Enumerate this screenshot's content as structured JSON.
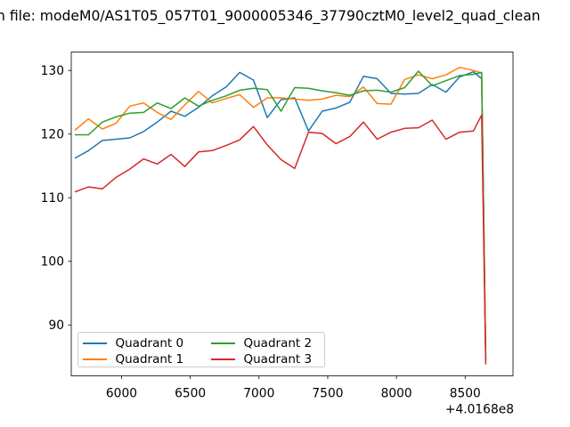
{
  "title": "n file: modeM0/AS1T05_057T01_9000005346_37790cztM0_level2_quad_clean",
  "axes": {
    "offset_text": "+4.0168e8",
    "xticks": [
      {
        "value": 6000,
        "label": "6000"
      },
      {
        "value": 6500,
        "label": "6500"
      },
      {
        "value": 7000,
        "label": "7000"
      },
      {
        "value": 7500,
        "label": "7500"
      },
      {
        "value": 8000,
        "label": "8000"
      },
      {
        "value": 8500,
        "label": "8500"
      }
    ],
    "yticks": [
      {
        "value": 90,
        "label": "90"
      },
      {
        "value": 100,
        "label": "100"
      },
      {
        "value": 110,
        "label": "110"
      },
      {
        "value": 120,
        "label": "120"
      },
      {
        "value": 130,
        "label": "130"
      }
    ]
  },
  "legend": {
    "items": [
      {
        "label": "Quadrant 0",
        "color": "#1f77b4"
      },
      {
        "label": "Quadrant 1",
        "color": "#ff7f0e"
      },
      {
        "label": "Quadrant 2",
        "color": "#2ca02c"
      },
      {
        "label": "Quadrant 3",
        "color": "#d62728"
      }
    ],
    "position": "lower left",
    "columns": 2
  },
  "chart_data": {
    "type": "line",
    "title": "n file: modeM0/AS1T05_057T01_9000005346_37790cztM0_level2_quad_clean",
    "xlabel": "",
    "ylabel": "",
    "x_offset_text": "+4.0168e8",
    "xlim": [
      5634,
      8848
    ],
    "ylim": [
      82.0,
      132.9
    ],
    "grid": false,
    "x": [
      5660,
      5760,
      5860,
      5960,
      6060,
      6160,
      6260,
      6360,
      6460,
      6560,
      6660,
      6760,
      6860,
      6960,
      7060,
      7160,
      7260,
      7360,
      7460,
      7560,
      7660,
      7760,
      7860,
      7960,
      8060,
      8160,
      8260,
      8360,
      8460,
      8560,
      8620,
      8650
    ],
    "series": [
      {
        "name": "Quadrant 0",
        "color": "#1f77b4",
        "values": [
          116.2,
          117.4,
          119.0,
          119.2,
          119.4,
          120.4,
          121.9,
          123.6,
          122.8,
          124.2,
          126.0,
          127.4,
          129.7,
          128.5,
          122.6,
          125.4,
          125.7,
          120.5,
          123.6,
          124.1,
          125.0,
          129.1,
          128.7,
          126.4,
          126.3,
          126.4,
          127.8,
          126.6,
          129.0,
          129.8,
          128.7,
          84.5
        ]
      },
      {
        "name": "Quadrant 1",
        "color": "#ff7f0e",
        "values": [
          120.6,
          122.4,
          120.8,
          121.7,
          124.4,
          124.9,
          123.4,
          122.3,
          124.6,
          126.7,
          124.9,
          125.6,
          126.2,
          124.2,
          125.7,
          125.7,
          125.5,
          125.3,
          125.5,
          126.1,
          125.9,
          127.4,
          124.8,
          124.7,
          128.6,
          129.3,
          128.7,
          129.3,
          130.5,
          130.0,
          129.6,
          84.6
        ]
      },
      {
        "name": "Quadrant 2",
        "color": "#2ca02c",
        "values": [
          119.9,
          119.9,
          121.9,
          122.7,
          123.3,
          123.4,
          124.9,
          124.0,
          125.7,
          124.4,
          125.3,
          126.0,
          126.9,
          127.2,
          127.0,
          123.6,
          127.3,
          127.2,
          126.8,
          126.5,
          126.1,
          126.8,
          126.9,
          126.6,
          127.3,
          129.9,
          127.6,
          128.4,
          129.2,
          129.4,
          129.7,
          84.3
        ]
      },
      {
        "name": "Quadrant 3",
        "color": "#d62728",
        "values": [
          110.9,
          111.7,
          111.4,
          113.2,
          114.5,
          116.1,
          115.3,
          116.8,
          114.9,
          117.2,
          117.4,
          118.2,
          119.1,
          121.2,
          118.3,
          116.0,
          114.6,
          120.3,
          120.1,
          118.5,
          119.6,
          121.9,
          119.2,
          120.3,
          120.9,
          121.0,
          122.2,
          119.2,
          120.3,
          120.5,
          123.0,
          83.8
        ]
      }
    ]
  }
}
